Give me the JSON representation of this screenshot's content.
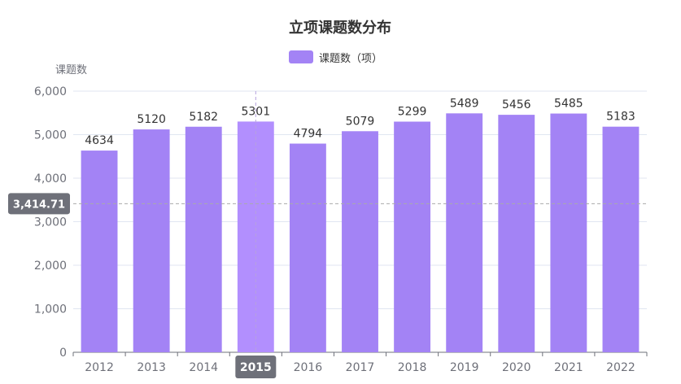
{
  "chart_data": {
    "type": "bar",
    "title": "立项课题数分布",
    "ylabel": "课题数",
    "xlabel": "",
    "ylim": [
      0,
      6000
    ],
    "yticks": [
      "0",
      "1,000",
      "2,000",
      "3,000",
      "4,000",
      "5,000",
      "6,000"
    ],
    "grid": true,
    "legend": "top-center",
    "categories": [
      "2012",
      "2013",
      "2014",
      "2015",
      "2016",
      "2017",
      "2018",
      "2019",
      "2020",
      "2021",
      "2022"
    ],
    "series": [
      {
        "name": "课题数（项）",
        "values": [
          4634,
          5120,
          5182,
          5301,
          4794,
          5079,
          5299,
          5489,
          5456,
          5485,
          5183
        ],
        "color": "#a383f5"
      }
    ],
    "hover": {
      "category_label": "2015",
      "y_value": 3414.71,
      "y_label": "3,414.71",
      "highlight_color": "#b28ffe"
    }
  }
}
